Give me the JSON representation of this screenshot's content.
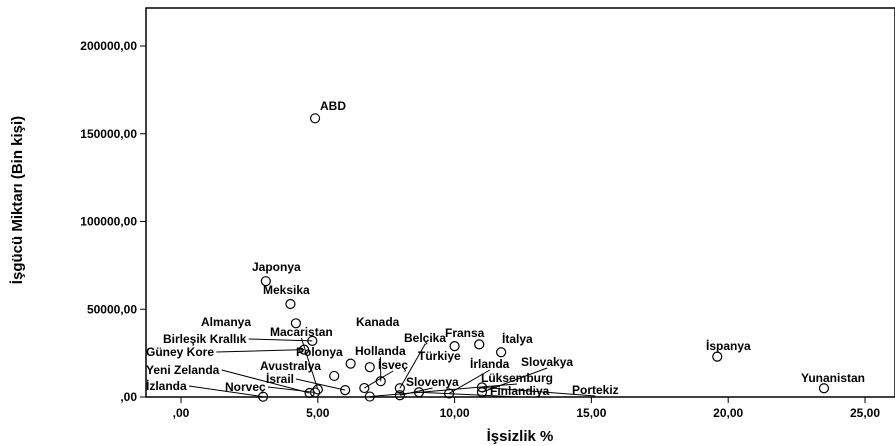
{
  "chart_data": {
    "type": "scatter",
    "title": "",
    "xlabel": "İşsizlik %",
    "ylabel": "İşgücü Miktarı (Bin kişi)",
    "xlim": [
      -1.2,
      25.5
    ],
    "ylim": [
      0,
      220000
    ],
    "x_ticks": [
      0,
      5,
      10,
      15,
      20,
      25
    ],
    "x_tick_labels": [
      ",00",
      "5,00",
      "10,00",
      "15,00",
      "20,00",
      "25,00"
    ],
    "y_ticks": [
      0,
      50000,
      100000,
      150000,
      200000
    ],
    "y_tick_labels": [
      ",00",
      "50000,00",
      "100000,00",
      "150000,00",
      "200000,00"
    ],
    "grid": false,
    "legend": "none",
    "points": [
      {
        "label": "ABD",
        "x": 4.9,
        "y": 158800
      },
      {
        "label": "Japonya",
        "x": 3.1,
        "y": 66000
      },
      {
        "label": "Meksika",
        "x": 4.0,
        "y": 53000
      },
      {
        "label": "Almanya",
        "x": 4.2,
        "y": 42000
      },
      {
        "label": "Birleşik Krallık",
        "x": 4.8,
        "y": 32000
      },
      {
        "label": "Kanada",
        "x": 6.2,
        "y": 19000
      },
      {
        "label": "Macaristan",
        "x": 5.0,
        "y": 4300
      },
      {
        "label": "Güney Kore",
        "x": 4.5,
        "y": 27000
      },
      {
        "label": "Polonya",
        "x": 6.9,
        "y": 17000
      },
      {
        "label": "Hollanda",
        "x": 7.3,
        "y": 9000
      },
      {
        "label": "Fransa",
        "x": 10.0,
        "y": 29000
      },
      {
        "label": "İtalya",
        "x": 11.7,
        "y": 25500
      },
      {
        "label": "Belçika",
        "x": 8.0,
        "y": 5000
      },
      {
        "label": "Türkiye",
        "x": 10.9,
        "y": 30000
      },
      {
        "label": "İrlanda",
        "x": 9.8,
        "y": 2000
      },
      {
        "label": "İsveç",
        "x": 6.7,
        "y": 5100
      },
      {
        "label": "Slovakya",
        "x": 11.0,
        "y": 2700
      },
      {
        "label": "Avustralya",
        "x": 5.6,
        "y": 12000
      },
      {
        "label": "İsrail",
        "x": 6.0,
        "y": 3900
      },
      {
        "label": "Yeni Zelanda",
        "x": 4.7,
        "y": 2300
      },
      {
        "label": "İzlanda",
        "x": 3.0,
        "y": 180
      },
      {
        "label": "Norveç",
        "x": 4.9,
        "y": 2600
      },
      {
        "label": "Slovenya",
        "x": 8.0,
        "y": 1000
      },
      {
        "label": "Lüksemburg",
        "x": 6.9,
        "y": 250
      },
      {
        "label": "Finlandiya",
        "x": 8.7,
        "y": 2700
      },
      {
        "label": "Portekiz",
        "x": 11.0,
        "y": 5500
      },
      {
        "label": "İspanya",
        "x": 19.6,
        "y": 23000
      },
      {
        "label": "Yunanistan",
        "x": 23.5,
        "y": 5000
      }
    ]
  }
}
